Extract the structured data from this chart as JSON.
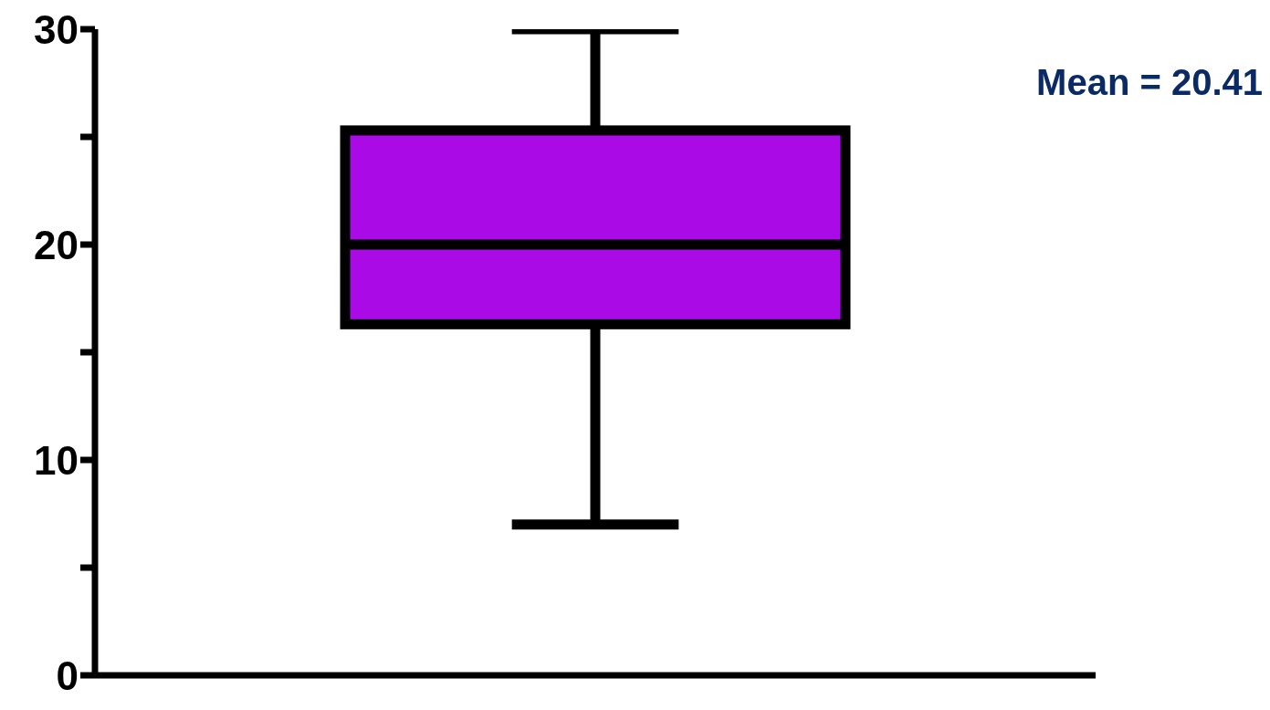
{
  "chart_data": {
    "type": "box",
    "categories": [
      null
    ],
    "boxes": [
      {
        "low": 7,
        "q1": 16.3,
        "median": 20,
        "q3": 25.3,
        "high": 30
      }
    ],
    "color": "#aa0ae6",
    "ylim": [
      0,
      30
    ],
    "yticks": [
      0,
      {
        "value": 5,
        "label": null
      },
      10,
      {
        "value": 15,
        "label": null
      },
      20,
      {
        "value": 25,
        "label": null
      },
      30
    ],
    "annotations": [
      "Mean = 20.41"
    ]
  }
}
